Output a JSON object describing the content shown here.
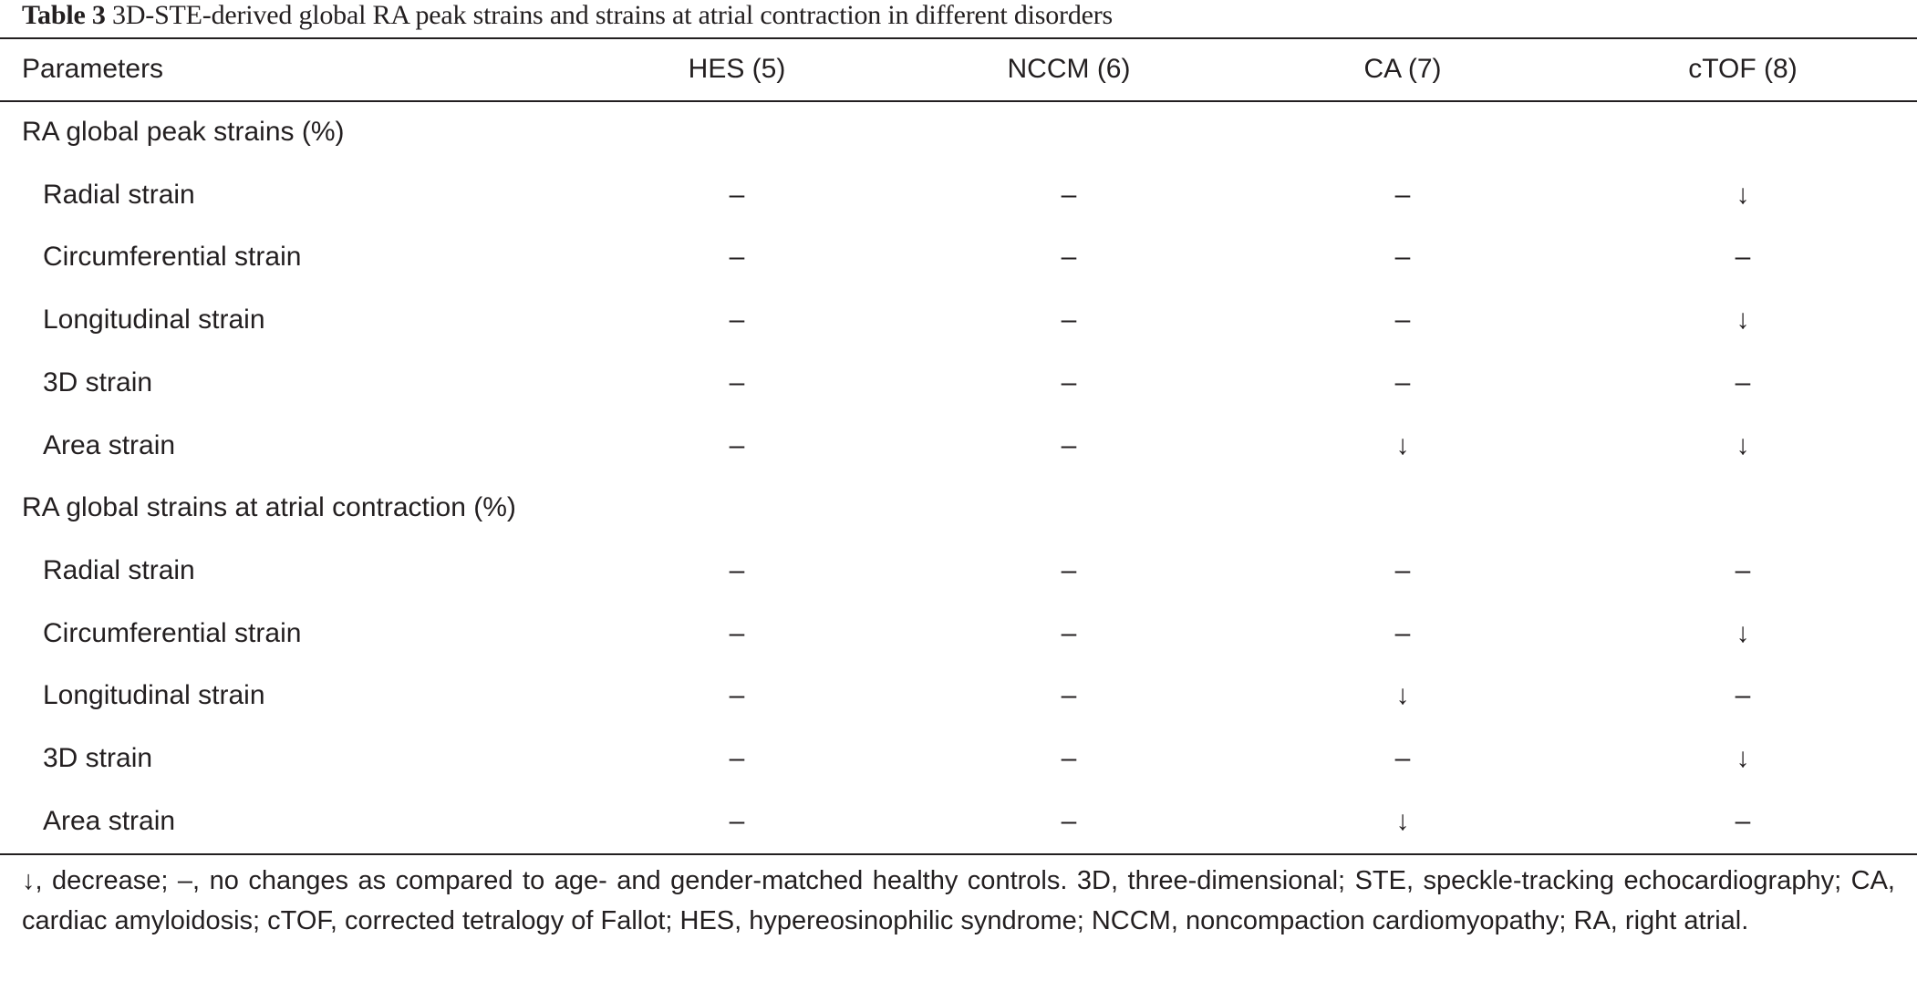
{
  "caption": {
    "label": "Table 3",
    "text": "3D-STE-derived global RA peak strains and strains at atrial contraction in different disorders"
  },
  "header": [
    "Parameters",
    "HES (5)",
    "NCCM (6)",
    "CA (7)",
    "cTOF (8)"
  ],
  "rows": [
    {
      "label": "RA global peak strains (%)",
      "section": true,
      "values": [
        "",
        "",
        "",
        ""
      ]
    },
    {
      "label": "Radial strain",
      "section": false,
      "values": [
        "–",
        "–",
        "–",
        "↓"
      ]
    },
    {
      "label": "Circumferential strain",
      "section": false,
      "values": [
        "–",
        "–",
        "–",
        "–"
      ]
    },
    {
      "label": "Longitudinal strain",
      "section": false,
      "values": [
        "–",
        "–",
        "–",
        "↓"
      ]
    },
    {
      "label": "3D strain",
      "section": false,
      "values": [
        "–",
        "–",
        "–",
        "–"
      ]
    },
    {
      "label": "Area strain",
      "section": false,
      "values": [
        "–",
        "–",
        "↓",
        "↓"
      ]
    },
    {
      "label": "RA global strains at atrial contraction (%)",
      "section": true,
      "values": [
        "",
        "",
        "",
        ""
      ]
    },
    {
      "label": "Radial strain",
      "section": false,
      "values": [
        "–",
        "–",
        "–",
        "–"
      ]
    },
    {
      "label": "Circumferential strain",
      "section": false,
      "values": [
        "–",
        "–",
        "–",
        "↓"
      ]
    },
    {
      "label": "Longitudinal strain",
      "section": false,
      "values": [
        "–",
        "–",
        "↓",
        "–"
      ]
    },
    {
      "label": "3D strain",
      "section": false,
      "values": [
        "–",
        "–",
        "–",
        "↓"
      ]
    },
    {
      "label": "Area strain",
      "section": false,
      "values": [
        "–",
        "–",
        "↓",
        "–"
      ]
    }
  ],
  "footnote": "↓, decrease; –, no changes as compared to age- and gender-matched healthy controls. 3D, three-dimensional; STE, speckle-tracking echocardiography; CA, cardiac amyloidosis; cTOF, corrected tetralogy of Fallot; HES, hypereosinophilic syndrome; NCCM, noncompaction cardiomyopathy; RA, right atrial."
}
